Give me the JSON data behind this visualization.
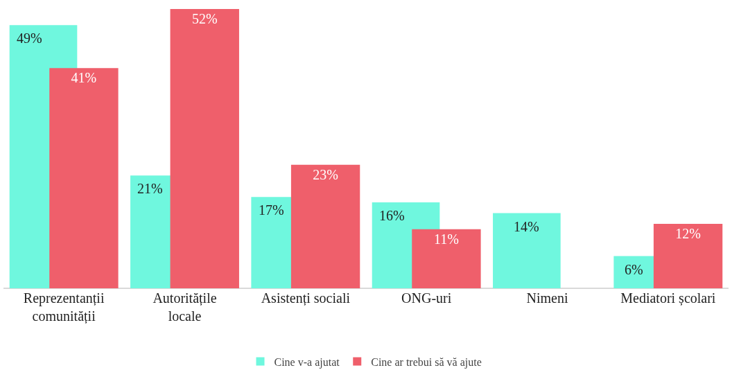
{
  "chart_data": {
    "type": "bar",
    "categories": [
      "Reprezentanții comunității",
      "Autoritățile locale",
      "Asistenți sociali",
      "ONG-uri",
      "Nimeni",
      "Mediatori școlari"
    ],
    "series": [
      {
        "name": "Cine v-a ajutat",
        "color": "#6ff7de",
        "values": [
          49,
          21,
          17,
          16,
          14,
          6
        ],
        "value_labels": [
          "49%",
          "21%",
          "17%",
          "16%",
          "14%",
          "6%"
        ]
      },
      {
        "name": "Cine ar trebui să vă ajute",
        "color": "#ef5f6b",
        "values": [
          41,
          52,
          23,
          11,
          null,
          12
        ],
        "value_labels": [
          "41%",
          "52%",
          "23%",
          "11%",
          null,
          "12%"
        ]
      }
    ],
    "legend": "bottom",
    "grid": false
  }
}
